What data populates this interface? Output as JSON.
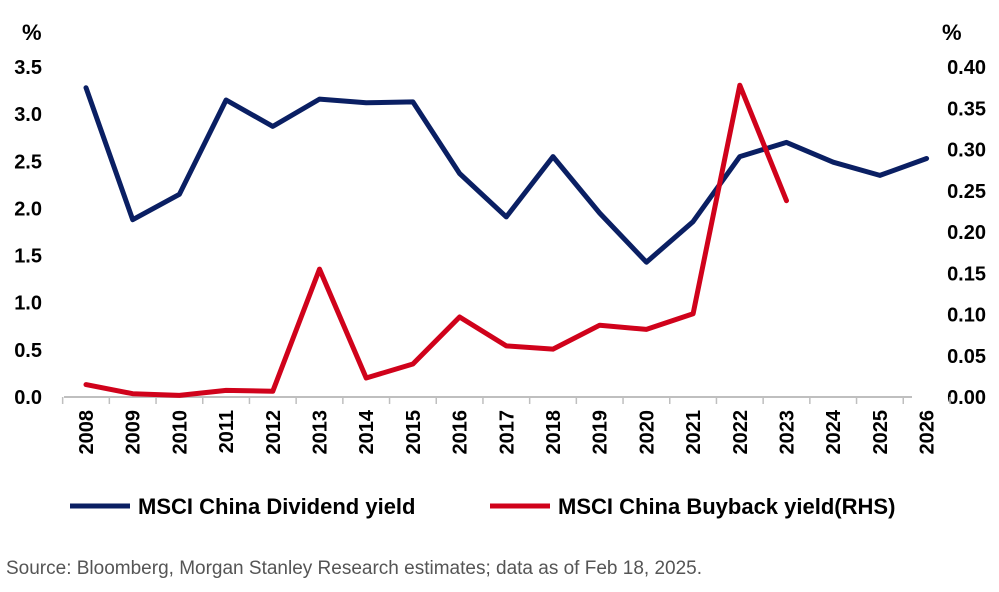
{
  "chart_data": {
    "type": "line",
    "x": [
      "2008",
      "2009",
      "2010",
      "2011",
      "2012",
      "2013",
      "2014",
      "2015",
      "2016",
      "2017",
      "2018",
      "2019",
      "2020",
      "2021",
      "2022",
      "2023",
      "2024",
      "2025",
      "2026"
    ],
    "series": [
      {
        "name": "MSCI China Dividend yield",
        "axis": "left",
        "color": "#0a1f63",
        "values": [
          3.28,
          1.88,
          2.15,
          3.15,
          2.87,
          3.16,
          3.12,
          3.13,
          2.37,
          1.91,
          2.55,
          1.95,
          1.43,
          1.86,
          2.55,
          2.7,
          2.49,
          2.35,
          2.53
        ]
      },
      {
        "name": "MSCI China Buyback yield(RHS)",
        "axis": "right",
        "color": "#d0021b",
        "values": [
          0.015,
          0.004,
          0.002,
          0.008,
          0.007,
          0.155,
          0.023,
          0.04,
          0.097,
          0.062,
          0.058,
          0.087,
          0.082,
          0.101,
          0.378,
          0.238,
          null,
          null,
          null
        ]
      }
    ],
    "left_axis": {
      "unit": "%",
      "ylim": [
        0,
        3.5
      ],
      "ticks": [
        "3.5",
        "3.0",
        "2.5",
        "2.0",
        "1.5",
        "1.0",
        "0.5",
        "0.0"
      ]
    },
    "right_axis": {
      "unit": "%",
      "ylim": [
        0,
        0.4
      ],
      "ticks": [
        "0.40",
        "0.35",
        "0.30",
        "0.25",
        "0.20",
        "0.15",
        "0.10",
        "0.05",
        "0.00"
      ]
    },
    "legend": "bottom",
    "grid": false
  },
  "source": "Source: Bloomberg, Morgan Stanley Research estimates; data as of Feb 18, 2025."
}
